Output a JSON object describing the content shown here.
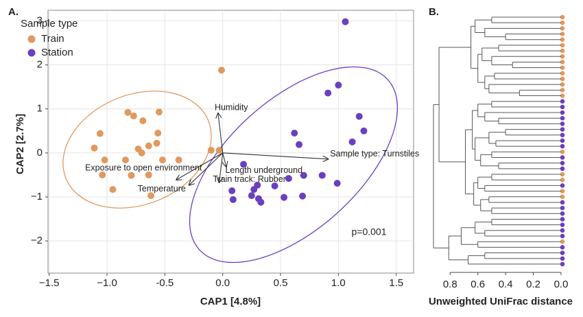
{
  "chart_data": [
    {
      "type": "scatter",
      "panel_label": "A.",
      "xlabel": "CAP1   [4.8%]",
      "ylabel": "CAP2   [2.7%]",
      "legend_title": "Sample type",
      "legend": "top-left",
      "grid": true,
      "annotation": "p=0.001",
      "xlim": [
        -1.51,
        1.65
      ],
      "ylim": [
        -2.73,
        3.24
      ],
      "xticks": [
        {
          "value": -1.5,
          "label": "−1.5"
        },
        {
          "value": -1,
          "label": "−1.0"
        },
        -0.5,
        {
          "value": 0,
          "label": "0.0"
        },
        0.5,
        {
          "value": 1,
          "label": "1.0"
        },
        1.5
      ],
      "yticks": [
        {
          "value": -2,
          "label": "−2"
        },
        {
          "value": -1,
          "label": "−1"
        },
        0,
        1,
        2,
        3
      ],
      "series": [
        {
          "name": "Train",
          "color": "#e0995e",
          "x": [
            -0.01,
            -0.82,
            -0.55,
            -0.77,
            -0.69,
            -1.06,
            -0.56,
            -0.64,
            -0.57,
            -1.11,
            -0.73,
            -0.7,
            -1.02,
            -0.84,
            -0.52,
            -0.38,
            -0.1,
            -0.03,
            -1.04,
            -0.79,
            -0.64,
            -0.95,
            -0.62
          ],
          "values": [
            1.88,
            0.92,
            0.93,
            0.84,
            0.73,
            0.44,
            0.45,
            0.16,
            0.22,
            0.11,
            0.09,
            0.0,
            -0.16,
            -0.16,
            -0.16,
            -0.16,
            0.06,
            0.06,
            -0.5,
            -0.51,
            -0.5,
            -0.83,
            -0.97
          ]
        },
        {
          "name": "Station",
          "color": "#6a3fc0",
          "x": [
            1.06,
            1.0,
            0.91,
            1.18,
            1.22,
            0.62,
            1.12,
            0.66,
            0.18,
            0.57,
            0.7,
            0.86,
            0.99,
            0.3,
            0.45,
            0.27,
            0.08,
            0.25,
            0.09,
            0.53,
            0.69,
            0.31,
            0.33
          ],
          "values": [
            2.98,
            1.54,
            1.36,
            0.83,
            0.5,
            0.45,
            0.25,
            0.19,
            -0.26,
            -0.58,
            -0.51,
            -0.51,
            -0.69,
            -0.73,
            -0.75,
            -0.83,
            -0.86,
            -0.97,
            -1.06,
            -1.01,
            -0.98,
            -1.04,
            -1.12
          ]
        }
      ],
      "vectors": [
        {
          "label": "Humidity",
          "x": -0.04,
          "y": 0.9
        },
        {
          "label": "Exposure to open environment",
          "x": -0.4,
          "y": -0.61
        },
        {
          "label": "Temperature",
          "x": -0.29,
          "y": -0.73
        },
        {
          "label": "Sample type: Turnstiles",
          "x": 0.91,
          "y": -0.14
        },
        {
          "label": "Length underground",
          "x": 0.03,
          "y": -0.31
        },
        {
          "label": "Train track: Rubber",
          "x": -0.03,
          "y": -0.67
        }
      ]
    },
    {
      "type": "dendrogram",
      "panel_label": "B.",
      "xlabel": "Unweighted UniFrac distance",
      "xlim": [
        0.92,
        0
      ],
      "xticks": [
        0.8,
        0.6,
        0.4,
        0.2,
        {
          "value": 0,
          "label": "0.0"
        }
      ],
      "leaves": [
        "Train",
        "Train",
        "Train",
        "Train",
        "Train",
        "Train",
        "Train",
        "Train",
        "Train",
        "Train",
        "Train",
        "Train",
        "Train",
        "Train",
        "Train",
        "Station",
        "Station",
        "Station",
        "Station",
        "Station",
        "Station",
        "Station",
        "Station",
        "Station",
        "Train",
        "Station",
        "Station",
        "Station",
        "Train",
        "Train",
        "Station",
        "Train",
        "Train",
        "Station",
        "Station",
        "Station",
        "Station",
        "Station",
        "Station",
        "Station",
        "Train",
        "Station",
        "Station",
        "Station",
        "Station"
      ],
      "tree": [
        0.92,
        [
          0.88,
          [
            0.65,
            [
              0.62,
              [
                0.5,
                0,
                1
              ],
              [
                0.55,
                2,
                [
                  0.4,
                  3,
                  4
                ]
              ]
            ],
            [
              0.6,
              [
                0.57,
                [
                  0.45,
                  5,
                  6
                ],
                [
                  0.5,
                  7,
                  [
                    0.35,
                    8,
                    9
                  ]
                ]
              ],
              [
                0.55,
                [
                  0.48,
                  10,
                  11
                ],
                [
                  0.52,
                  12,
                  [
                    0.3,
                    13,
                    14
                  ]
                ]
              ]
            ]
          ],
          [
            0.69,
            [
              0.64,
              [
                0.6,
                [
                  0.5,
                  15,
                  16
                ],
                [
                  0.55,
                  17,
                  [
                    0.45,
                    18,
                    19
                  ]
                ]
              ],
              [
                0.62,
                [
                  0.52,
                  [
                    0.4,
                    20,
                    21
                  ],
                  [
                    0.47,
                    22,
                    23
                  ]
                ],
                [
                  0.58,
                  [
                    0.5,
                    24,
                    25
                  ],
                  [
                    0.45,
                    26,
                    27
                  ]
                ]
              ]
            ],
            [
              0.63,
              [
                0.6,
                [
                  0.5,
                  28,
                  29
                ],
                [
                  0.55,
                  30,
                  31
                ]
              ],
              [
                0.58,
                [
                  0.52,
                  32,
                  33
                ],
                [
                  0.5,
                  34,
                  35
                ]
              ]
            ]
          ]
        ],
        [
          0.81,
          [
            0.72,
            [
              0.62,
              [
                0.5,
                36,
                37
              ],
              [
                0.55,
                38,
                39
              ]
            ],
            [
              0.6,
              40,
              41
            ]
          ],
          [
            0.67,
            [
              0.55,
              42,
              43
            ],
            44
          ]
        ]
      ]
    }
  ]
}
